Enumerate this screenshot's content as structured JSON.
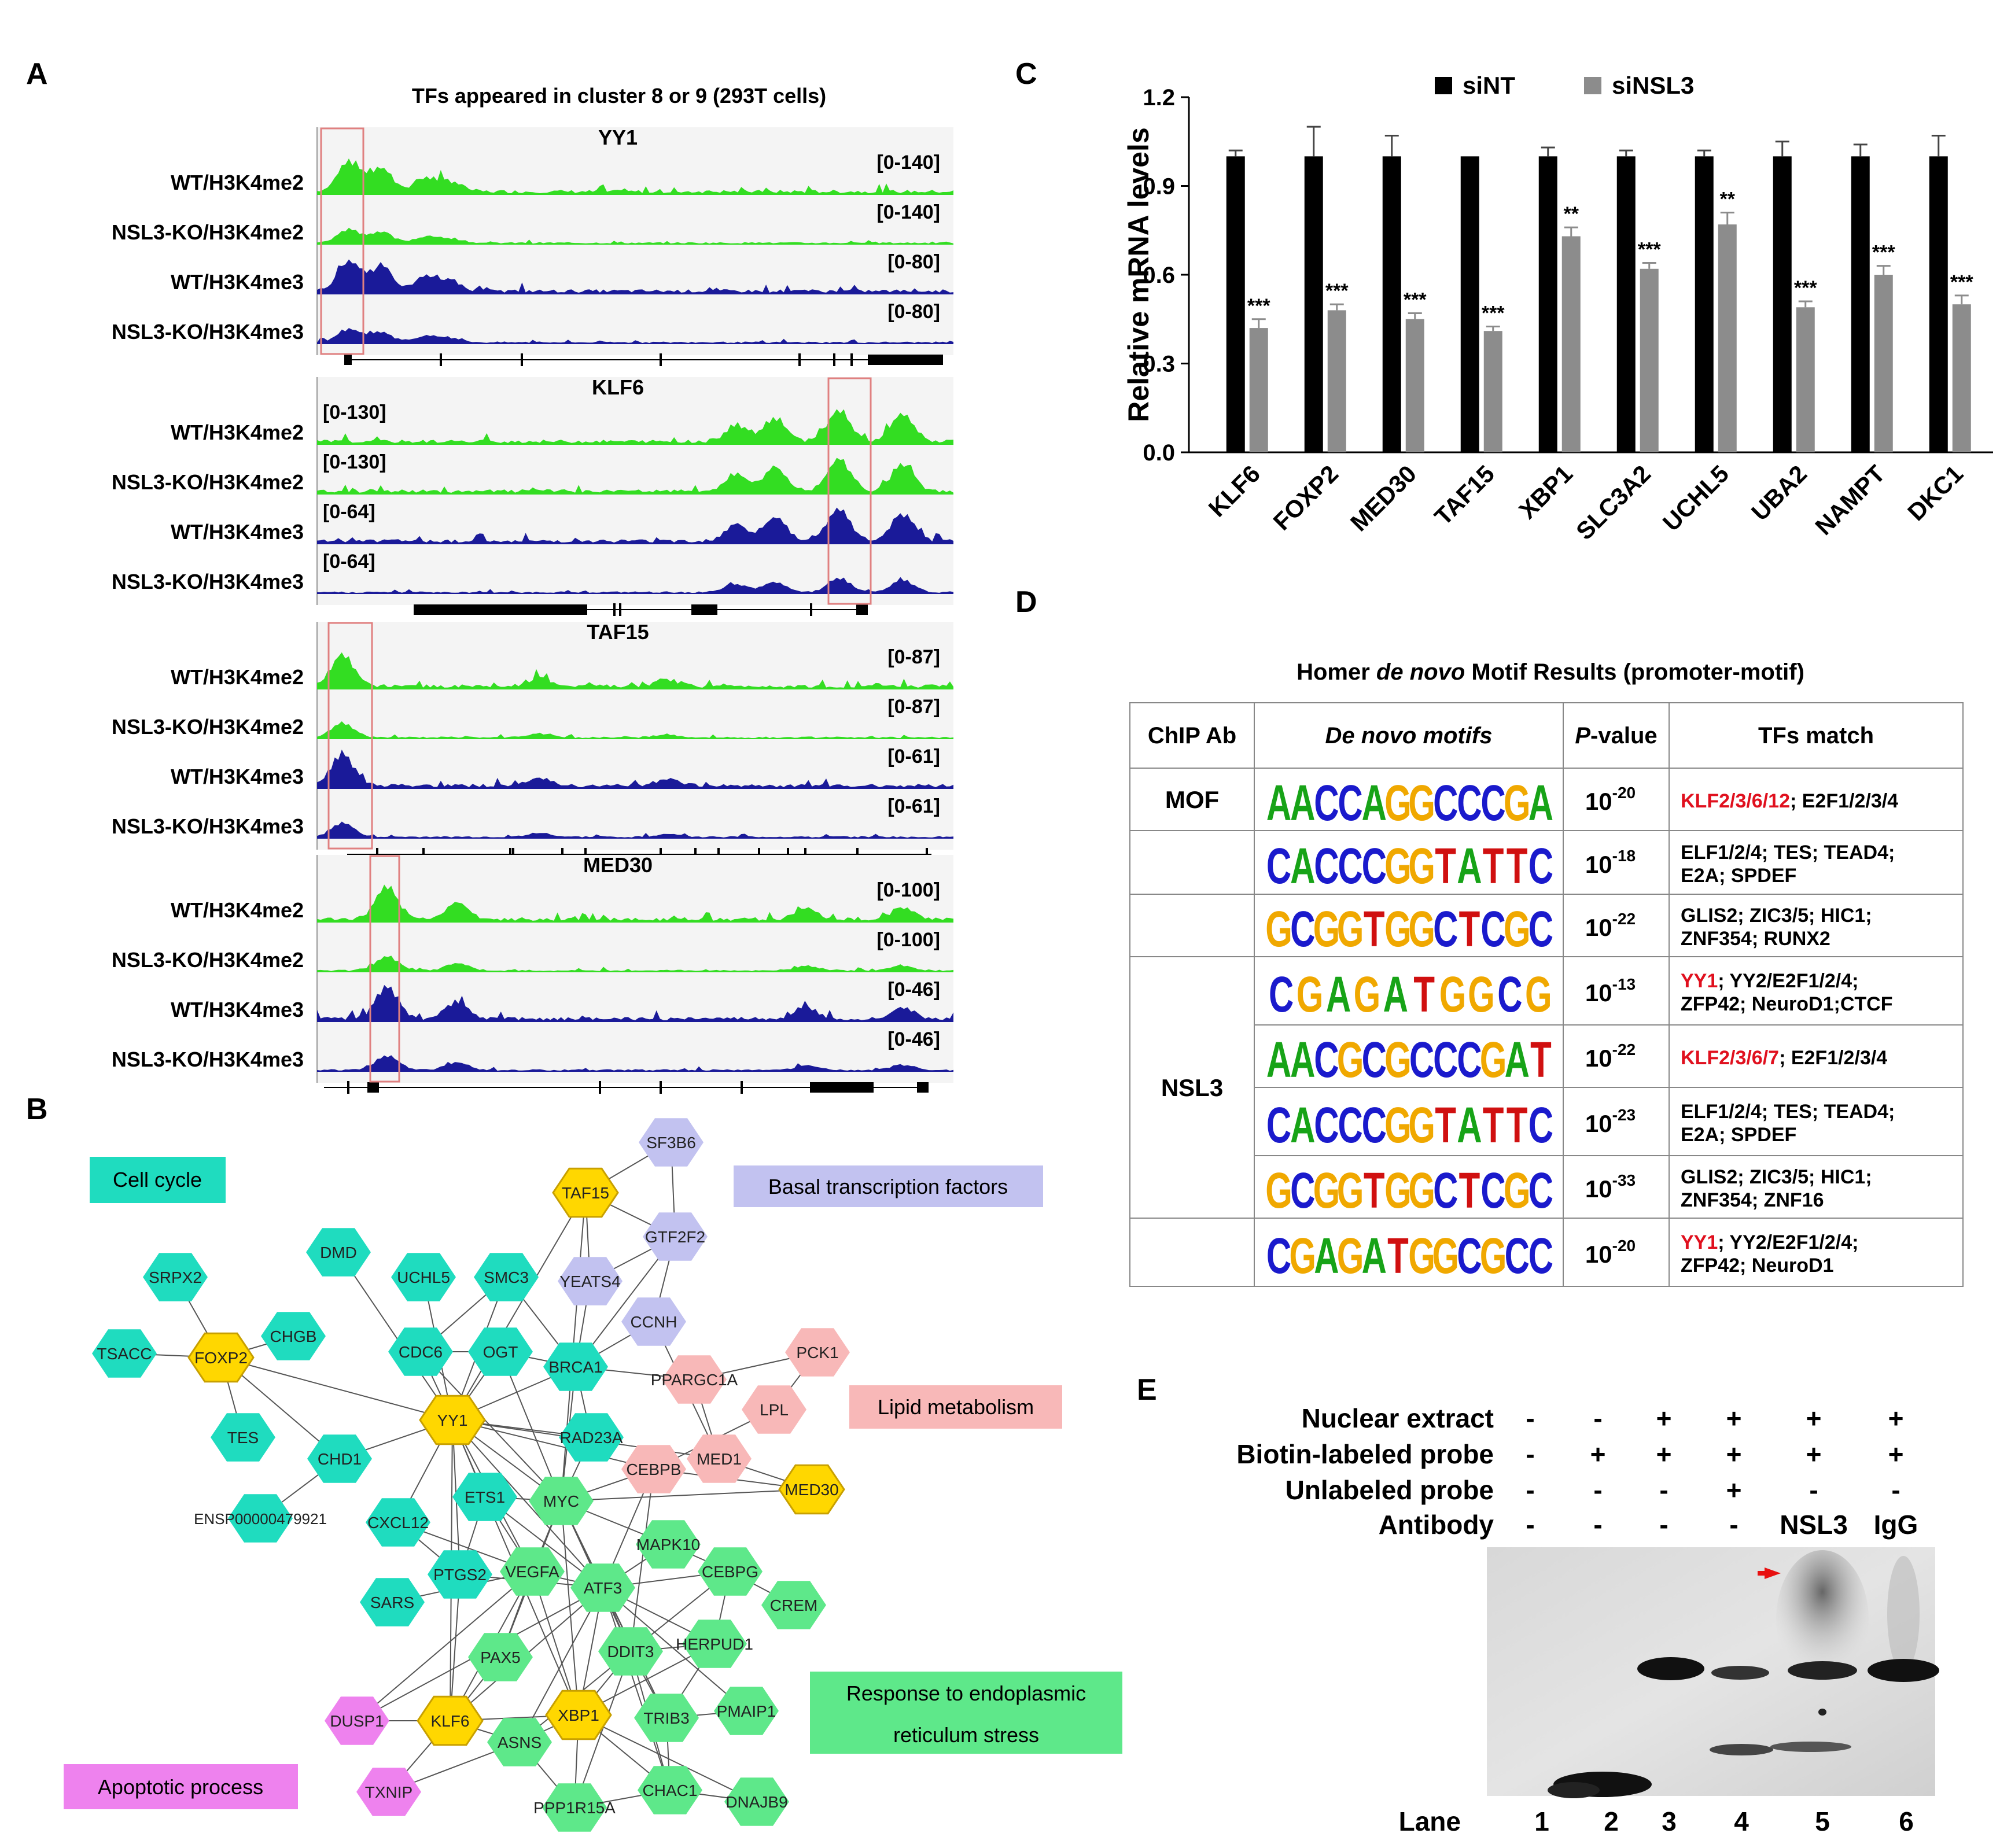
{
  "panels": {
    "a": "A",
    "b": "B",
    "c": "C",
    "d": "D",
    "e": "E"
  },
  "colors": {
    "h3k4me2": "#33dd22",
    "h3k4me3": "#1a1a99",
    "highlight": "#e08080",
    "teal": "#1fdcbf",
    "yellow": "#ffd700",
    "lavender": "#c2c2f0",
    "pink": "#f8b8b8",
    "green": "#5ee88a",
    "magenta": "#ee82ee",
    "red": "#e0101e",
    "siNT": "#000000",
    "siNSL3": "#8c8c8c"
  },
  "panel_a": {
    "title": "TFs appeared in cluster 8 or 9 (293T cells)",
    "groups": [
      {
        "gene": "YY1",
        "tracks": [
          {
            "label": "WT/H3K4me2",
            "range": "[0-140]"
          },
          {
            "label": "NSL3-KO/H3K4me2",
            "range": "[0-140]"
          },
          {
            "label": "WT/H3K4me3",
            "range": "[0-80]"
          },
          {
            "label": "NSL3-KO/H3K4me3",
            "range": "[0-80]"
          }
        ]
      },
      {
        "gene": "KLF6",
        "tracks": [
          {
            "label": "WT/H3K4me2",
            "range": "[0-130]"
          },
          {
            "label": "NSL3-KO/H3K4me2",
            "range": "[0-130]"
          },
          {
            "label": "WT/H3K4me3",
            "range": "[0-64]"
          },
          {
            "label": "NSL3-KO/H3K4me3",
            "range": "[0-64]"
          }
        ]
      },
      {
        "gene": "TAF15",
        "tracks": [
          {
            "label": "WT/H3K4me2",
            "range": "[0-87]"
          },
          {
            "label": "NSL3-KO/H3K4me2",
            "range": "[0-87]"
          },
          {
            "label": "WT/H3K4me3",
            "range": "[0-61]"
          },
          {
            "label": "NSL3-KO/H3K4me3",
            "range": "[0-61]"
          }
        ]
      },
      {
        "gene": "MED30",
        "tracks": [
          {
            "label": "WT/H3K4me2",
            "range": "[0-100]"
          },
          {
            "label": "NSL3-KO/H3K4me2",
            "range": "[0-100]"
          },
          {
            "label": "WT/H3K4me3",
            "range": "[0-46]"
          },
          {
            "label": "NSL3-KO/H3K4me3",
            "range": "[0-46]"
          }
        ]
      }
    ]
  },
  "panel_b": {
    "categories": {
      "cell_cycle": "Cell cycle",
      "basal": "Basal transcription factors",
      "lipid": "Lipid metabolism",
      "er_stress_1": "Response to endoplasmic",
      "er_stress_2": "reticulum stress",
      "apoptotic": "Apoptotic process"
    },
    "nodes": [
      "SF3B6",
      "TAF15",
      "GTF2F2",
      "DMD",
      "UCHL5",
      "SMC3",
      "YEATS4",
      "SRPX2",
      "CCNH",
      "CHGB",
      "TSACC",
      "FOXP2",
      "CDC6",
      "OGT",
      "BRCA1",
      "PCK1",
      "PPARGC1A",
      "LPL",
      "YY1",
      "TES",
      "CHD1",
      "RAD23A",
      "MED1",
      "CEBPB",
      "MED30",
      "ETS1",
      "MYC",
      "CXCL12",
      "ENSP00000479921",
      "MAPK10",
      "PTGS2",
      "VEGFA",
      "CEBPG",
      "CREM",
      "SARS",
      "ATF3",
      "HERPUD1",
      "DDIT3",
      "PAX5",
      "PMAIP1",
      "TRIB3",
      "XBP1",
      "DUSP1",
      "KLF6",
      "ASNS",
      "CHAC1",
      "TXNIP",
      "PPP1R15A",
      "DNAJB9"
    ]
  },
  "chart_data": {
    "type": "bar",
    "title": "",
    "xlabel": "",
    "ylabel": "Relative mRNA levels",
    "ylim": [
      0,
      1.2
    ],
    "yticks": [
      "0.0",
      "0.3",
      "0.6",
      "0.9",
      "1.2"
    ],
    "categories": [
      "KLF6",
      "FOXP2",
      "MED30",
      "TAF15",
      "XBP1",
      "SLC3A2",
      "UCHL5",
      "UBA2",
      "NAMPT",
      "DKC1"
    ],
    "series": [
      {
        "name": "siNT",
        "values": [
          1.0,
          1.0,
          1.0,
          1.0,
          1.0,
          1.0,
          1.0,
          1.0,
          1.0,
          1.0
        ],
        "errors": [
          0.02,
          0.1,
          0.07,
          0.0,
          0.03,
          0.02,
          0.02,
          0.05,
          0.04,
          0.07
        ]
      },
      {
        "name": "siNSL3",
        "values": [
          0.42,
          0.48,
          0.45,
          0.41,
          0.73,
          0.62,
          0.77,
          0.49,
          0.6,
          0.5
        ],
        "errors": [
          0.03,
          0.02,
          0.02,
          0.015,
          0.03,
          0.02,
          0.04,
          0.02,
          0.03,
          0.03
        ]
      }
    ],
    "significance": [
      "***",
      "***",
      "***",
      "***",
      "**",
      "***",
      "**",
      "***",
      "***",
      "***"
    ],
    "legend_position": "top"
  },
  "panel_d": {
    "title_part1": "Homer ",
    "title_italic": "de novo",
    "title_part2": " Motif Results (promoter-motif)",
    "headers": {
      "ab": "ChIP Ab",
      "motif": "De novo motifs",
      "p_italic": "P",
      "p_rest": "-value",
      "match": "TFs match"
    },
    "rows": [
      {
        "ab": "MOF",
        "motif": "AACCAGGCCCGA",
        "exp": "-20",
        "red": "KLF2/3/6/12",
        "line1": "; E2F1/2/3/4",
        "line2": ""
      },
      {
        "ab": "",
        "motif": "CACCCGGTATTC",
        "exp": "-18",
        "red": "",
        "line1": "ELF1/2/4;  TES;  TEAD4;",
        "line2": "E2A;  SPDEF"
      },
      {
        "ab": "",
        "motif": "GCGGTGGCTCGC",
        "exp": "-22",
        "red": "",
        "line1": "GLIS2;  ZIC3/5;   HIC1;",
        "line2": "ZNF354;  RUNX2"
      },
      {
        "ab": "",
        "motif": "CGAGATGGCG",
        "exp": "-13",
        "red": "YY1",
        "line1": "; YY2/E2F1/2/4;",
        "line2": "ZFP42;  NeuroD1;CTCF"
      },
      {
        "ab": "NSL3",
        "motif": "AACGCGCCCGAT",
        "exp": "-22",
        "red": "KLF2/3/6/7",
        "line1": "; E2F1/2/3/4",
        "line2": ""
      },
      {
        "ab": "",
        "motif": "CACCCGGTATTC",
        "exp": "-23",
        "red": "",
        "line1": "ELF1/2/4;  TES;  TEAD4;",
        "line2": "E2A;  SPDEF"
      },
      {
        "ab": "",
        "motif": "GCGGTGGCTCGC",
        "exp": "-33",
        "red": "",
        "line1": "GLIS2;  ZIC3/5;   HIC1;",
        "line2": "ZNF354;  ZNF16"
      },
      {
        "ab": "",
        "motif": "CGAGATGGCGCC",
        "exp": "-20",
        "red": "YY1",
        "line1": "; YY2/E2F1/2/4;",
        "line2": "ZFP42;  NeuroD1"
      }
    ]
  },
  "panel_e": {
    "row_labels": [
      "Nuclear extract",
      "Biotin-labeled probe",
      "Unlabeled probe",
      "Antibody"
    ],
    "grid": [
      [
        "-",
        "-",
        "+",
        "+",
        "+",
        "+"
      ],
      [
        "-",
        "+",
        "+",
        "+",
        "+",
        "+"
      ],
      [
        "-",
        "-",
        "-",
        "+",
        "-",
        "-"
      ],
      [
        "-",
        "-",
        "-",
        "-",
        "NSL3",
        "IgG"
      ]
    ],
    "lane_label": "Lane",
    "lanes": [
      "1",
      "2",
      "3",
      "4",
      "5",
      "6"
    ]
  }
}
